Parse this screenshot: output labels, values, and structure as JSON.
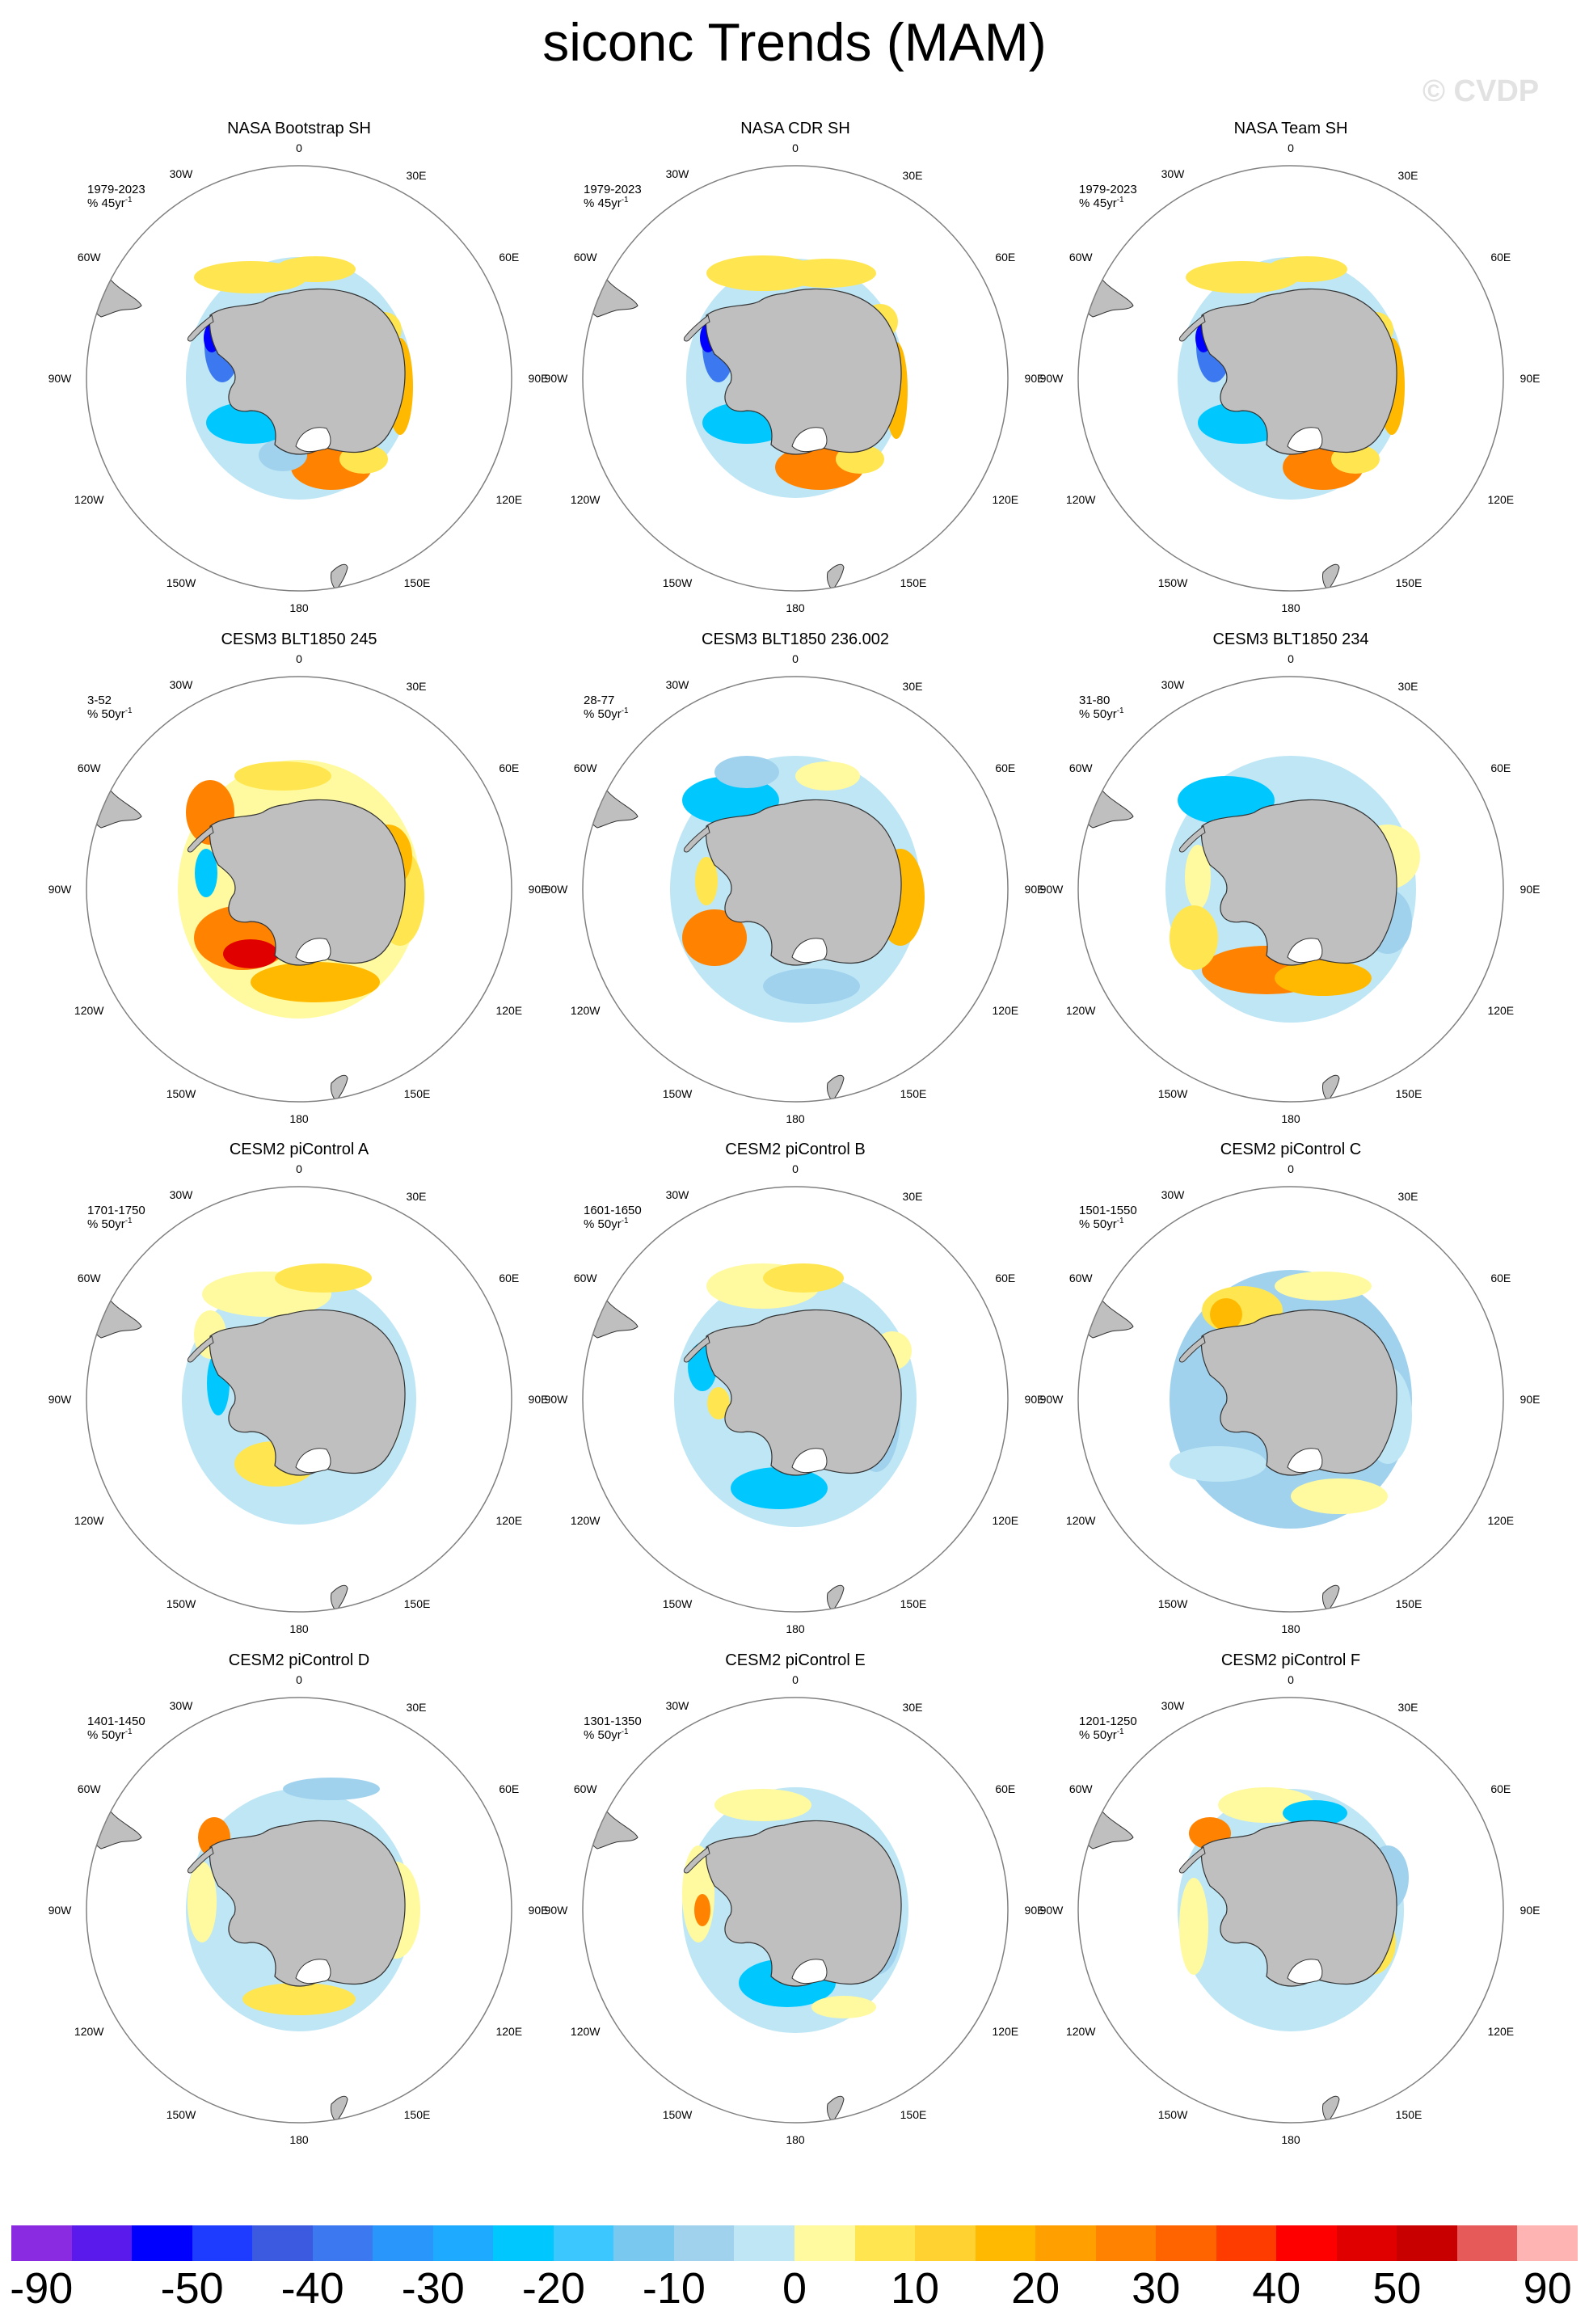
{
  "title": "siconc Trends (MAM)",
  "watermark": "© CVDP",
  "lon_labels": {
    "0": "0",
    "30E": "30E",
    "60E": "60E",
    "90E": "90E",
    "120E": "120E",
    "150E": "150E",
    "180": "180",
    "150W": "150W",
    "120W": "120W",
    "90W": "90W",
    "60W": "60W",
    "30W": "30W"
  },
  "panels": [
    {
      "title": "NASA Bootstrap SH",
      "period": "1979-2023",
      "units": "% 45yr",
      "units_sup": "-1",
      "pattern": "obs_boot"
    },
    {
      "title": "NASA CDR SH",
      "period": "1979-2023",
      "units": "% 45yr",
      "units_sup": "-1",
      "pattern": "obs_cdr"
    },
    {
      "title": "NASA Team SH",
      "period": "1979-2023",
      "units": "% 45yr",
      "units_sup": "-1",
      "pattern": "obs_team"
    },
    {
      "title": "CESM3 BLT1850 245",
      "period": "3-52",
      "units": "% 50yr",
      "units_sup": "-1",
      "pattern": "blt245"
    },
    {
      "title": "CESM3 BLT1850 236.002",
      "period": "28-77",
      "units": "% 50yr",
      "units_sup": "-1",
      "pattern": "blt236"
    },
    {
      "title": "CESM3 BLT1850 234",
      "period": "31-80",
      "units": "% 50yr",
      "units_sup": "-1",
      "pattern": "blt234"
    },
    {
      "title": "CESM2 piControl A",
      "period": "1701-1750",
      "units": "% 50yr",
      "units_sup": "-1",
      "pattern": "piA"
    },
    {
      "title": "CESM2 piControl B",
      "period": "1601-1650",
      "units": "% 50yr",
      "units_sup": "-1",
      "pattern": "piB"
    },
    {
      "title": "CESM2 piControl C",
      "period": "1501-1550",
      "units": "% 50yr",
      "units_sup": "-1",
      "pattern": "piC"
    },
    {
      "title": "CESM2 piControl D",
      "period": "1401-1450",
      "units": "% 50yr",
      "units_sup": "-1",
      "pattern": "piD"
    },
    {
      "title": "CESM2 piControl E",
      "period": "1301-1350",
      "units": "% 50yr",
      "units_sup": "-1",
      "pattern": "piE"
    },
    {
      "title": "CESM2 piControl F",
      "period": "1201-1250",
      "units": "% 50yr",
      "units_sup": "-1",
      "pattern": "piF"
    }
  ],
  "colorbar": {
    "colors": [
      "#8a2be2",
      "#5a1aeb",
      "#0000ff",
      "#1e3cff",
      "#3c5ae0",
      "#3c78f0",
      "#2896fa",
      "#1eaaff",
      "#00c8ff",
      "#3cc8ff",
      "#78c8f0",
      "#a0d2ee",
      "#bee6f5",
      "#fffaa0",
      "#ffe650",
      "#ffd232",
      "#ffb900",
      "#ffa000",
      "#ff8200",
      "#ff6400",
      "#ff3c00",
      "#ff0000",
      "#e10000",
      "#c80000",
      "#e65a5a",
      "#ffb4b4"
    ],
    "labels": [
      "-90",
      "-50",
      "-40",
      "-30",
      "-20",
      "-10",
      "0",
      "10",
      "20",
      "30",
      "40",
      "50",
      "90"
    ]
  },
  "colors": {
    "land": "#bfbfbf",
    "frame": "#808080"
  }
}
